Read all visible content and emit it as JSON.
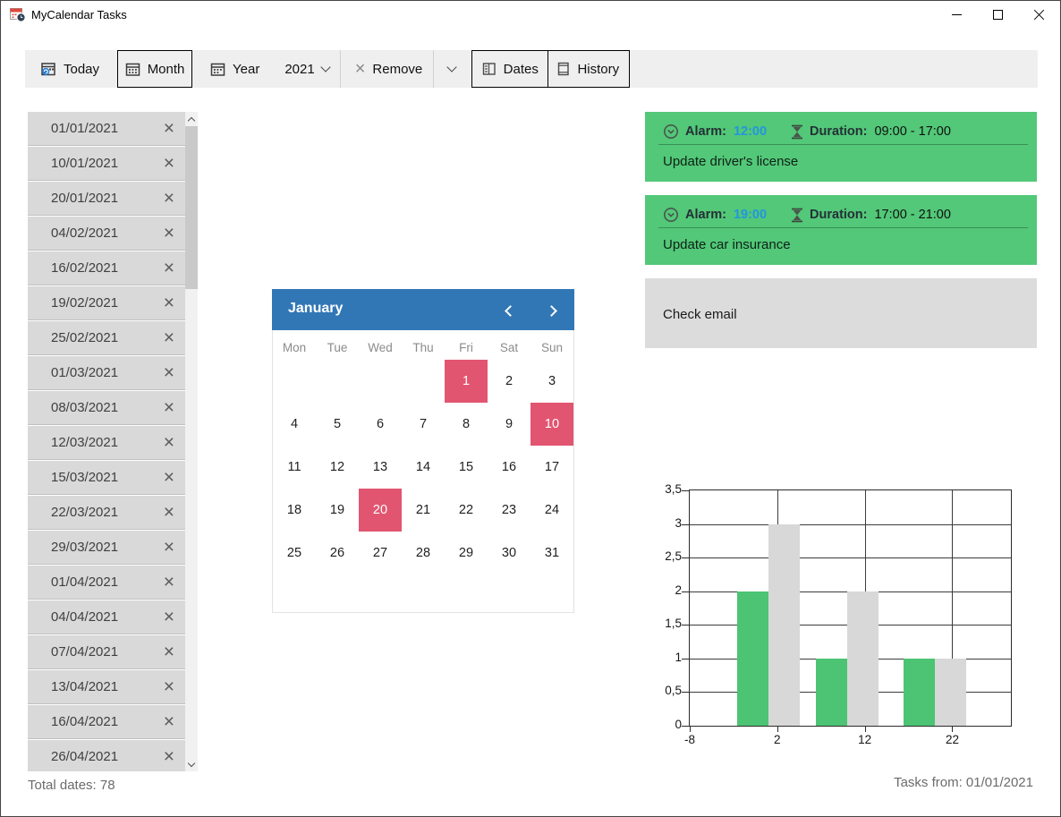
{
  "window": {
    "title": "MyCalendar Tasks"
  },
  "toolbar": {
    "today": "Today",
    "month": "Month",
    "year": "Year",
    "year_value": "2021",
    "remove": "Remove",
    "dates": "Dates",
    "history": "History"
  },
  "dates_list": {
    "items": [
      "01/01/2021",
      "10/01/2021",
      "20/01/2021",
      "04/02/2021",
      "16/02/2021",
      "19/02/2021",
      "25/02/2021",
      "01/03/2021",
      "08/03/2021",
      "12/03/2021",
      "15/03/2021",
      "22/03/2021",
      "29/03/2021",
      "01/04/2021",
      "04/04/2021",
      "07/04/2021",
      "13/04/2021",
      "16/04/2021",
      "26/04/2021"
    ],
    "total_label": "Total dates: 78"
  },
  "calendar": {
    "month_label": "January",
    "weekdays": [
      "Mon",
      "Tue",
      "Wed",
      "Thu",
      "Fri",
      "Sat",
      "Sun"
    ],
    "first_day_offset": 4,
    "days_in_month": 31,
    "highlighted_days": [
      1,
      10,
      20
    ],
    "colors": {
      "header": "#3277b5",
      "highlight": "#e25570"
    }
  },
  "tasks": [
    {
      "alarm_label": "Alarm:",
      "alarm_time": "12:00",
      "duration_label": "Duration:",
      "duration": "09:00 - 17:00",
      "title": "Update driver's license",
      "color": "#52c878"
    },
    {
      "alarm_label": "Alarm:",
      "alarm_time": "19:00",
      "duration_label": "Duration:",
      "duration": "17:00 - 21:00",
      "title": "Update car insurance",
      "color": "#52c878"
    },
    {
      "title": "Check email",
      "color": "#dcdcdc"
    }
  ],
  "chart_data": {
    "type": "bar",
    "x": [
      1,
      10,
      20
    ],
    "series": [
      {
        "name": "green",
        "color": "#4cc473",
        "values": [
          2,
          1,
          1
        ]
      },
      {
        "name": "gray",
        "color": "#d8d8d8",
        "values": [
          3,
          2,
          1
        ]
      }
    ],
    "xlim": [
      -8,
      28.7
    ],
    "ylim": [
      0,
      3.5
    ],
    "x_ticks": [
      -8,
      2,
      12,
      22
    ],
    "x_tick_labels": [
      "-8",
      "2",
      "12",
      "22"
    ],
    "y_ticks": [
      0,
      0.5,
      1,
      1.5,
      2,
      2.5,
      3,
      3.5
    ],
    "y_tick_labels": [
      "0",
      "0,5",
      "1",
      "1,5",
      "2",
      "2,5",
      "3",
      "3,5"
    ],
    "grid": true,
    "legend": false
  },
  "footer": {
    "tasks_from": "Tasks from: 01/01/2021"
  },
  "accents": {
    "time_text": "#2595e0"
  }
}
